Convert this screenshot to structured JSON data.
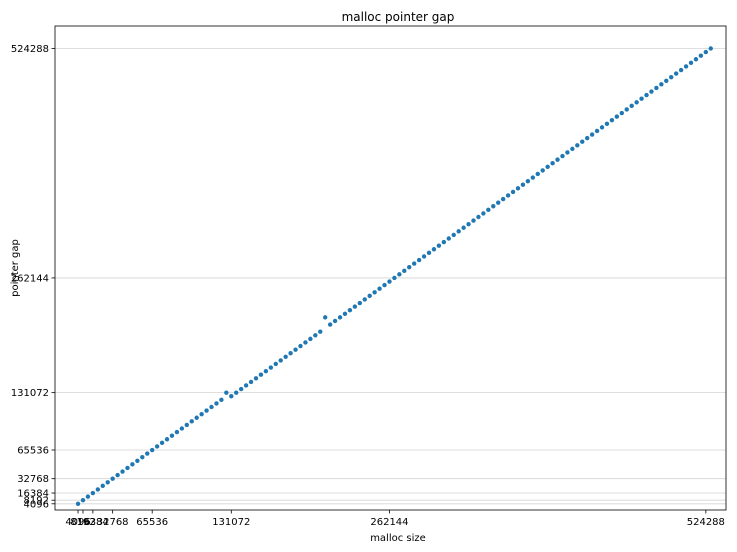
{
  "chart_data": {
    "type": "scatter",
    "title": "malloc pointer gap",
    "xlabel": "malloc size",
    "ylabel": "pointer gap",
    "xlim": [
      -15000,
      541000
    ],
    "ylim": [
      -3000,
      550000
    ],
    "xticks": [
      4096,
      8192,
      16384,
      32768,
      65536,
      131072,
      262144,
      524288
    ],
    "yticks": [
      4096,
      8192,
      16384,
      32768,
      65536,
      131072,
      262144,
      524288
    ],
    "grid_y": true,
    "grid_x": false,
    "marker_color": "#1f77b4",
    "points": {
      "base_x": 4096,
      "step_x": 4096,
      "y": [
        4096,
        8192,
        12288,
        16384,
        20480,
        24576,
        28672,
        32768,
        36864,
        40960,
        45056,
        49152,
        53248,
        57344,
        61440,
        65536,
        69632,
        73728,
        77824,
        81920,
        86016,
        90112,
        94208,
        98304,
        102400,
        106496,
        110592,
        114688,
        118784,
        122880,
        131072,
        126976,
        131072,
        135168,
        139264,
        143360,
        147456,
        151552,
        155648,
        159744,
        163840,
        167936,
        172032,
        176128,
        180224,
        184320,
        188416,
        192512,
        196608,
        200704,
        217088,
        208896,
        212992,
        217088,
        221184,
        225280,
        229376,
        233472,
        237568,
        241664,
        245760,
        249856,
        253952,
        258048,
        262144,
        266240,
        270336,
        274432,
        278528,
        282624,
        286720,
        290816,
        294912,
        299008,
        303104,
        307200,
        311296,
        315392,
        319488,
        323584,
        327680,
        331776,
        335872,
        339968,
        344064,
        348160,
        352256,
        356352,
        360448,
        364544,
        368640,
        372736,
        376832,
        380928,
        385024,
        389120,
        393216,
        397312,
        401408,
        405504,
        409600,
        413696,
        417792,
        421888,
        425984,
        430080,
        434176,
        438272,
        442368,
        446464,
        450560,
        454656,
        458752,
        462848,
        466944,
        471040,
        475136,
        479232,
        483328,
        487424,
        491520,
        495616,
        499712,
        503808,
        507904,
        512000,
        516096,
        520192,
        524288
      ]
    }
  }
}
